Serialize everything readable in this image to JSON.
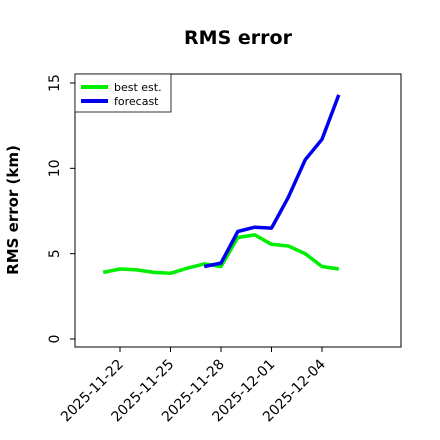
{
  "chart_data": {
    "type": "line",
    "title": "RMS error",
    "xlabel": "",
    "ylabel": "RMS error (km)",
    "ylim": [
      0,
      15
    ],
    "yticks": [
      "0",
      "5",
      "10",
      "15"
    ],
    "xticks": [
      "2025-11-22",
      "2025-11-25",
      "2025-11-28",
      "2025-12-01",
      "2025-12-04"
    ],
    "grid": false,
    "legend_position": "top-left",
    "series": [
      {
        "name": "best est.",
        "color": "#00ee00",
        "x": [
          "2025-11-21",
          "2025-11-22",
          "2025-11-23",
          "2025-11-24",
          "2025-11-25",
          "2025-11-26",
          "2025-11-27",
          "2025-11-28",
          "2025-11-29",
          "2025-11-30",
          "2025-12-01",
          "2025-12-02",
          "2025-12-03",
          "2025-12-04",
          "2025-12-05"
        ],
        "y": [
          3.9,
          4.1,
          4.05,
          3.9,
          3.85,
          4.15,
          4.4,
          4.25,
          5.95,
          6.1,
          5.55,
          5.45,
          5.0,
          4.25,
          4.1
        ]
      },
      {
        "name": "forecast",
        "color": "#0000ee",
        "x": [
          "2025-11-27",
          "2025-11-28",
          "2025-11-29",
          "2025-11-30",
          "2025-12-01",
          "2025-12-02",
          "2025-12-03",
          "2025-12-04",
          "2025-12-05"
        ],
        "y": [
          4.25,
          4.45,
          6.3,
          6.55,
          6.5,
          8.3,
          10.5,
          11.7,
          14.3
        ]
      }
    ]
  }
}
